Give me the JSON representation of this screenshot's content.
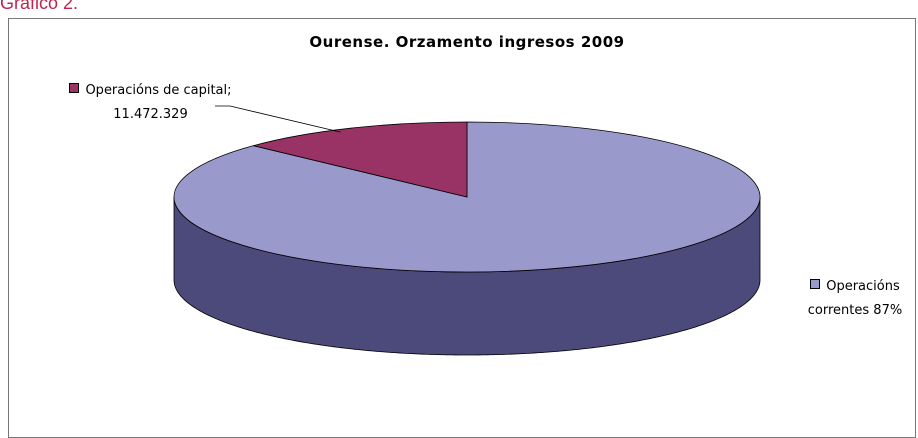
{
  "caption": "Gráfico 2.",
  "chart_data": {
    "type": "pie3d",
    "title": "Ourense. Orzamento ingresos 2009",
    "series": [
      {
        "name": "Operacións correntes",
        "color": "#9999cc",
        "side_color": "#4b4a7b"
      },
      {
        "name": "Operacións de capital",
        "color": "#993366",
        "side_color": "#5e1f40"
      }
    ],
    "values": [
      76776000,
      11472329
    ],
    "data_labels": [
      "Operacións correntes 87%",
      "Operacións de capital; 11.472.329"
    ]
  }
}
